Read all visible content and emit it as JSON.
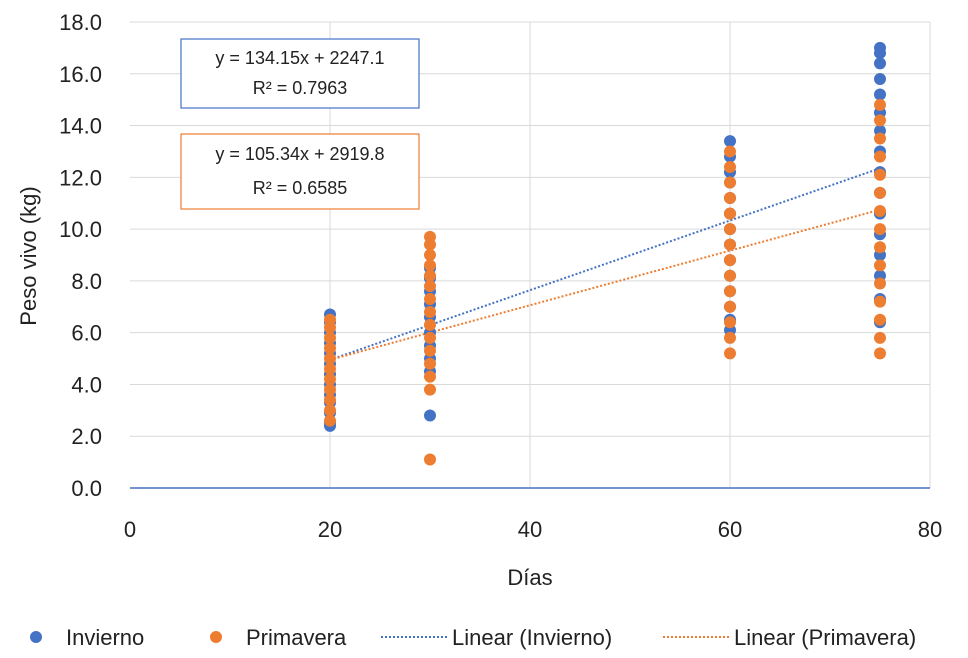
{
  "chart_data": {
    "type": "scatter",
    "title": "",
    "xlabel": "Días",
    "ylabel": "Peso vivo (kg)",
    "xlim": [
      0,
      80
    ],
    "ylim": [
      0,
      18
    ],
    "x_ticks": [
      "0",
      "20",
      "40",
      "60",
      "80"
    ],
    "y_ticks": [
      "0.0",
      "2.0",
      "4.0",
      "6.0",
      "8.0",
      "10.0",
      "12.0",
      "14.0",
      "16.0",
      "18.0"
    ],
    "grid": "on",
    "legend_position": "bottom",
    "series": [
      {
        "name": "Invierno",
        "color": "#4472C4",
        "points": [
          [
            20,
            2.4
          ],
          [
            20,
            2.5
          ],
          [
            20,
            2.9
          ],
          [
            20,
            3.3
          ],
          [
            20,
            3.6
          ],
          [
            20,
            4.0
          ],
          [
            20,
            4.4
          ],
          [
            20,
            4.8
          ],
          [
            20,
            5.2
          ],
          [
            20,
            5.6
          ],
          [
            20,
            6.0
          ],
          [
            20,
            6.4
          ],
          [
            20,
            6.7
          ],
          [
            30,
            2.8
          ],
          [
            30,
            4.5
          ],
          [
            30,
            5.0
          ],
          [
            30,
            5.5
          ],
          [
            30,
            6.0
          ],
          [
            30,
            6.6
          ],
          [
            30,
            7.1
          ],
          [
            30,
            7.6
          ],
          [
            30,
            8.1
          ],
          [
            30,
            8.5
          ],
          [
            60,
            6.1
          ],
          [
            60,
            6.5
          ],
          [
            60,
            7.0
          ],
          [
            60,
            7.6
          ],
          [
            60,
            8.2
          ],
          [
            60,
            8.8
          ],
          [
            60,
            9.4
          ],
          [
            60,
            10.0
          ],
          [
            60,
            10.6
          ],
          [
            60,
            11.2
          ],
          [
            60,
            11.8
          ],
          [
            60,
            12.2
          ],
          [
            60,
            12.8
          ],
          [
            60,
            13.4
          ],
          [
            75,
            6.4
          ],
          [
            75,
            7.3
          ],
          [
            75,
            8.2
          ],
          [
            75,
            9.0
          ],
          [
            75,
            9.8
          ],
          [
            75,
            10.6
          ],
          [
            75,
            11.4
          ],
          [
            75,
            12.2
          ],
          [
            75,
            13.0
          ],
          [
            75,
            13.8
          ],
          [
            75,
            14.5
          ],
          [
            75,
            15.2
          ],
          [
            75,
            15.8
          ],
          [
            75,
            16.4
          ],
          [
            75,
            16.8
          ],
          [
            75,
            17.0
          ]
        ]
      },
      {
        "name": "Primavera",
        "color": "#ED7D31",
        "points": [
          [
            20,
            2.6
          ],
          [
            20,
            3.0
          ],
          [
            20,
            3.4
          ],
          [
            20,
            3.8
          ],
          [
            20,
            4.2
          ],
          [
            20,
            4.6
          ],
          [
            20,
            5.0
          ],
          [
            20,
            5.4
          ],
          [
            20,
            5.8
          ],
          [
            20,
            6.2
          ],
          [
            20,
            6.5
          ],
          [
            30,
            1.1
          ],
          [
            30,
            3.8
          ],
          [
            30,
            4.3
          ],
          [
            30,
            4.8
          ],
          [
            30,
            5.3
          ],
          [
            30,
            5.8
          ],
          [
            30,
            6.3
          ],
          [
            30,
            6.8
          ],
          [
            30,
            7.3
          ],
          [
            30,
            7.8
          ],
          [
            30,
            8.2
          ],
          [
            30,
            8.6
          ],
          [
            30,
            9.0
          ],
          [
            30,
            9.4
          ],
          [
            30,
            9.7
          ],
          [
            60,
            5.2
          ],
          [
            60,
            5.8
          ],
          [
            60,
            6.4
          ],
          [
            60,
            7.0
          ],
          [
            60,
            7.6
          ],
          [
            60,
            8.2
          ],
          [
            60,
            8.8
          ],
          [
            60,
            9.4
          ],
          [
            60,
            10.0
          ],
          [
            60,
            10.6
          ],
          [
            60,
            11.2
          ],
          [
            60,
            11.8
          ],
          [
            60,
            12.4
          ],
          [
            60,
            13.0
          ],
          [
            75,
            5.2
          ],
          [
            75,
            5.8
          ],
          [
            75,
            6.5
          ],
          [
            75,
            7.2
          ],
          [
            75,
            7.9
          ],
          [
            75,
            8.6
          ],
          [
            75,
            9.3
          ],
          [
            75,
            10.0
          ],
          [
            75,
            10.7
          ],
          [
            75,
            11.4
          ],
          [
            75,
            12.1
          ],
          [
            75,
            12.8
          ],
          [
            75,
            13.5
          ],
          [
            75,
            14.2
          ],
          [
            75,
            14.8
          ]
        ]
      }
    ],
    "trendlines": [
      {
        "name": "Linear (Invierno)",
        "color": "#4472C4",
        "x": [
          20,
          75
        ],
        "y": [
          4.95,
          12.35
        ],
        "equation": "y = 134.15x + 2247.1",
        "r2": "R² = 0.7963"
      },
      {
        "name": "Linear (Primavera)",
        "color": "#ED7D31",
        "x": [
          20,
          75
        ],
        "y": [
          4.95,
          10.75
        ],
        "equation": "y = 105.34x + 2919.8",
        "r2": "R² = 0.6585"
      }
    ]
  }
}
